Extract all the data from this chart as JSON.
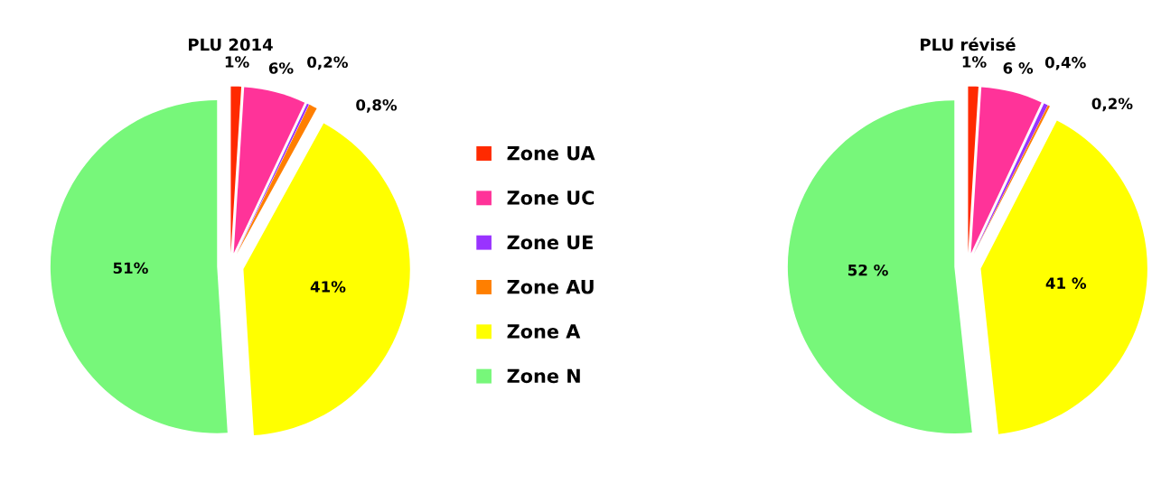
{
  "chart_data": [
    {
      "type": "pie",
      "title": "PLU 2014",
      "categories": [
        "Zone UA",
        "Zone UC",
        "Zone UE",
        "Zone AU",
        "Zone A",
        "Zone N"
      ],
      "values": [
        1,
        6,
        0.2,
        0.8,
        41,
        51
      ],
      "colors": [
        "#ff2a00",
        "#ff3399",
        "#9933ff",
        "#ff7f00",
        "#ffff00",
        "#77f77a"
      ],
      "value_labels": [
        "1%",
        "6%",
        "0,2%",
        "0,8%",
        "41%",
        "51%"
      ],
      "legend": "right"
    },
    {
      "type": "pie",
      "title": "PLU révisé",
      "categories": [
        null,
        null,
        null,
        null,
        null,
        null
      ],
      "values": [
        1,
        6,
        0.4,
        0.2,
        41,
        52
      ],
      "colors": [
        "#ff2a00",
        "#ff3399",
        "#9933ff",
        "#ff7f00",
        "#ffff00",
        "#77f77a"
      ],
      "value_labels": [
        "1%",
        "6 %",
        "0,4%",
        "0,2%",
        "41 %",
        "52 %"
      ]
    }
  ]
}
